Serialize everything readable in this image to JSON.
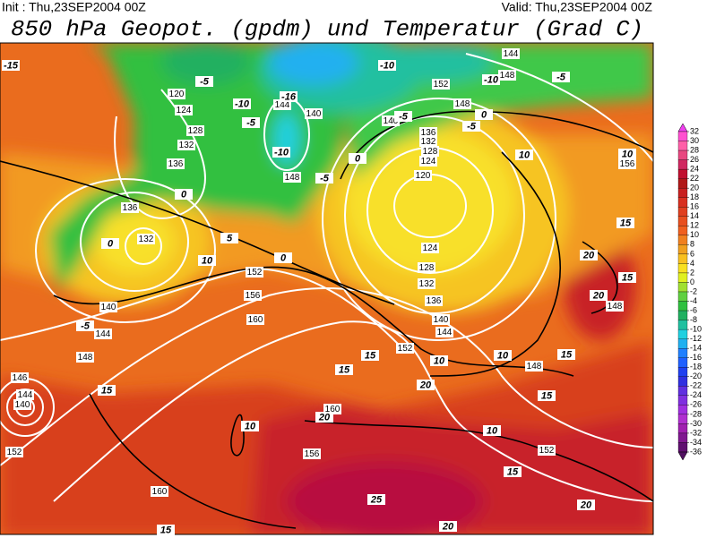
{
  "header": {
    "init": "Init : Thu,23SEP2004 00Z",
    "valid": "Valid: Thu,23SEP2004 00Z",
    "title": "850 hPa Geopot. (gpdm) und Temperatur (Grad C)"
  },
  "colorbar": {
    "ticks": [
      32,
      30,
      28,
      26,
      24,
      22,
      20,
      18,
      16,
      14,
      12,
      10,
      8,
      6,
      4,
      2,
      0,
      -2,
      -4,
      -6,
      -8,
      -10,
      -12,
      -14,
      -16,
      -18,
      -20,
      -22,
      -24,
      -26,
      -28,
      -30,
      -32,
      -34,
      -36
    ],
    "colors": [
      "#f040f0",
      "#ff50d0",
      "#ff60a8",
      "#e84880",
      "#d02860",
      "#c01030",
      "#b01818",
      "#c82020",
      "#d83020",
      "#e04020",
      "#e85020",
      "#f06020",
      "#f08020",
      "#f0a020",
      "#f8c020",
      "#f8e020",
      "#e0f020",
      "#a0e030",
      "#60d040",
      "#30c040",
      "#20b060",
      "#20c0a0",
      "#20d0e0",
      "#20b0f0",
      "#2080ff",
      "#2060ff",
      "#2040f0",
      "#3030e0",
      "#6030e0",
      "#8030e0",
      "#a030e0",
      "#b030d0",
      "#a020b0",
      "#801890",
      "#601070",
      "#501060"
    ]
  },
  "map": {
    "height_labels": [
      144,
      152,
      148,
      148,
      140,
      136,
      132,
      128,
      124,
      120,
      120,
      124,
      128,
      132,
      136,
      144,
      140,
      148,
      136,
      132,
      124,
      128,
      132,
      136,
      140,
      144,
      152,
      156,
      160,
      140,
      144,
      148,
      152,
      148,
      148,
      156,
      146,
      144,
      140,
      152,
      160,
      156,
      160,
      152
    ],
    "temperature_labels": [
      -15,
      -10,
      -10,
      -5,
      -5,
      -10,
      -5,
      -16,
      -10,
      -5,
      -5,
      0,
      -5,
      0,
      0,
      0,
      5,
      0,
      10,
      -5,
      15,
      10,
      10,
      15,
      20,
      20,
      15,
      15,
      10,
      15,
      15,
      10,
      20,
      15,
      20,
      10,
      10,
      15,
      20,
      25,
      20,
      15
    ]
  }
}
